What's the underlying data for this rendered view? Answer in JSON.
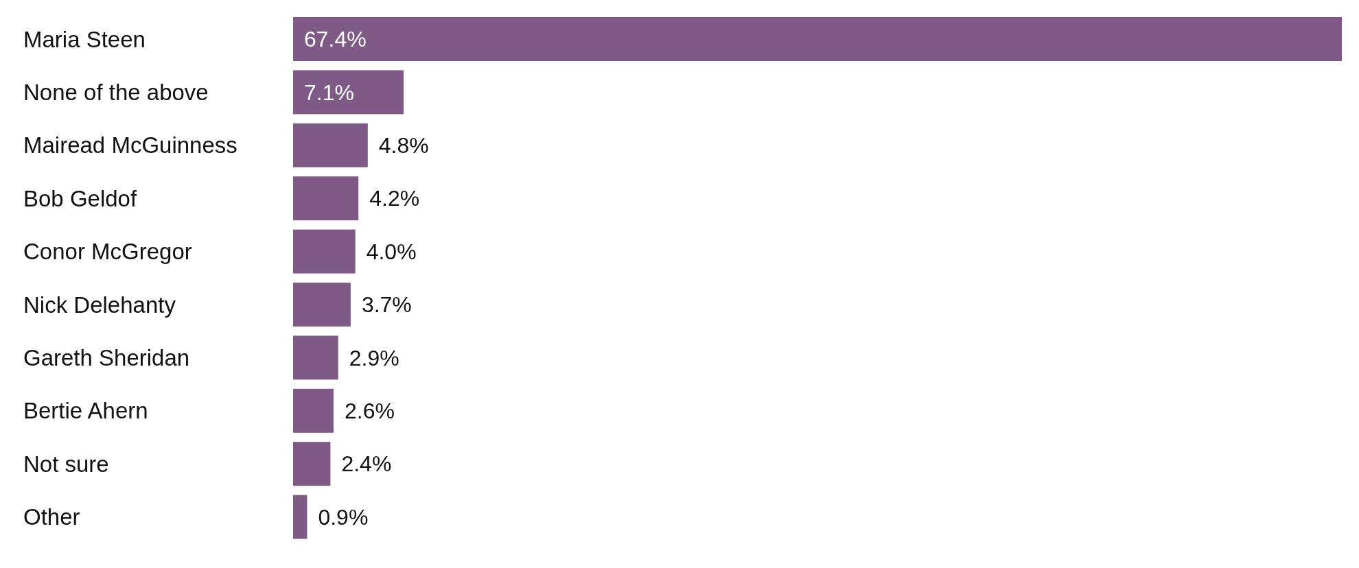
{
  "chart_data": {
    "type": "bar",
    "orientation": "horizontal",
    "categories": [
      "Maria Steen",
      "None of the above",
      "Mairead McGuinness",
      "Bob Geldof",
      "Conor McGregor",
      "Nick Delehanty",
      "Gareth Sheridan",
      "Bertie Ahern",
      "Not sure",
      "Other"
    ],
    "values": [
      67.4,
      7.1,
      4.8,
      4.2,
      4.0,
      3.7,
      2.9,
      2.6,
      2.4,
      0.9
    ],
    "value_labels": [
      "67.4%",
      "7.1%",
      "4.8%",
      "4.2%",
      "4.0%",
      "3.7%",
      "2.9%",
      "2.6%",
      "2.4%",
      "0.9%"
    ],
    "color": "#7f5a87"
  }
}
